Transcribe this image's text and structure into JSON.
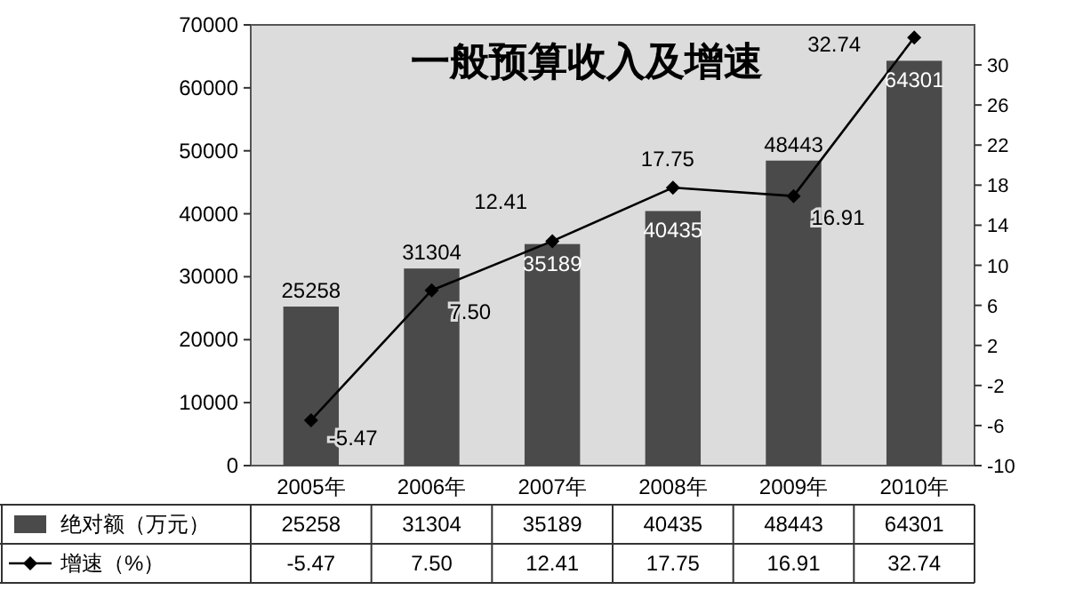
{
  "chart_data": {
    "type": "bar",
    "title": "一般预算收入及增速",
    "categories": [
      "2005年",
      "2006年",
      "2007年",
      "2008年",
      "2009年",
      "2010年"
    ],
    "series": [
      {
        "name": "绝对额（万元）",
        "color": "#4a4a4a",
        "values": [
          25258,
          31304,
          35189,
          40435,
          48443,
          64301
        ],
        "value_labels": [
          "25258",
          "31304",
          "35189",
          "40435",
          "48443",
          "64301"
        ]
      },
      {
        "name": "增速（%）",
        "type": "line",
        "axis": "y2",
        "color": "#000000",
        "marker": "diamond",
        "values": [
          -5.47,
          7.5,
          12.41,
          17.75,
          16.91,
          32.74
        ],
        "value_labels": [
          "-5.47",
          "7.50",
          "12.41",
          "17.75",
          "16.91",
          "32.74"
        ]
      }
    ],
    "ylim": [
      0,
      70000
    ],
    "yticks": [
      0,
      10000,
      20000,
      30000,
      40000,
      50000,
      60000,
      70000
    ],
    "y2lim": [
      -10,
      34
    ],
    "y2ticks": [
      -10,
      -6,
      -2,
      2,
      6,
      10,
      14,
      18,
      22,
      26,
      30
    ],
    "legend": "bottom",
    "grid": false
  }
}
